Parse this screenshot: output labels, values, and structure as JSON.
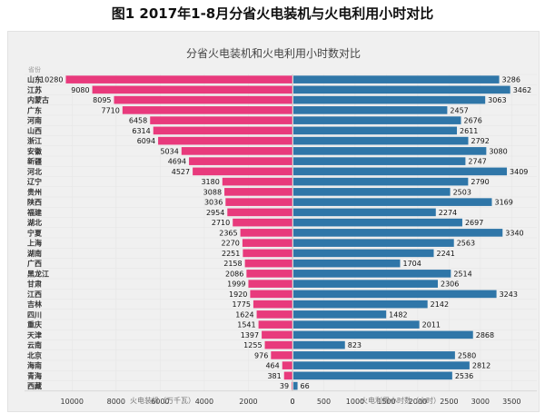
{
  "header": {
    "title": "图1 2017年1-8月分省火电装机与火电利用小时对比"
  },
  "chart_data": {
    "type": "bar",
    "title": "分省火电装机和火电利用小时数对比",
    "category_header": "省份",
    "categories": [
      "山东",
      "江苏",
      "内蒙古",
      "广东",
      "河南",
      "山西",
      "浙江",
      "安徽",
      "新疆",
      "河北",
      "辽宁",
      "贵州",
      "陕西",
      "福建",
      "湖北",
      "宁夏",
      "上海",
      "湖南",
      "广西",
      "黑龙江",
      "甘肃",
      "江西",
      "吉林",
      "四川",
      "重庆",
      "天津",
      "云南",
      "北京",
      "海南",
      "青海",
      "西藏"
    ],
    "series": [
      {
        "name": "火电装机（万千瓦）",
        "color": "#e83a7c",
        "values": [
          10280,
          9080,
          8095,
          7710,
          6458,
          6314,
          6094,
          5034,
          4694,
          4527,
          3180,
          3088,
          3036,
          2954,
          2710,
          2365,
          2270,
          2251,
          2158,
          2086,
          1999,
          1920,
          1775,
          1624,
          1541,
          1397,
          1255,
          976,
          464,
          381,
          39
        ]
      },
      {
        "name": "火电利用小时数（小时）",
        "color": "#2f76a8",
        "values": [
          3286,
          3462,
          3063,
          2457,
          2676,
          2611,
          2792,
          3080,
          2747,
          3409,
          2790,
          2503,
          3169,
          2274,
          2697,
          3340,
          2563,
          2241,
          1704,
          2514,
          2306,
          3243,
          2142,
          1482,
          2011,
          2868,
          823,
          2580,
          2812,
          2536,
          66
        ]
      }
    ],
    "left_axis": {
      "label": "火电装机（万千瓦）",
      "ticks": [
        10000,
        8000,
        6000,
        4000,
        2000,
        0
      ],
      "range": [
        0,
        11000
      ],
      "reversed": true
    },
    "right_axis": {
      "label": "火电利用小时数（小时）",
      "ticks": [
        0,
        500,
        1000,
        1500,
        2000,
        2500,
        3000,
        3500
      ],
      "range": [
        0,
        3800
      ]
    },
    "grid": true
  }
}
